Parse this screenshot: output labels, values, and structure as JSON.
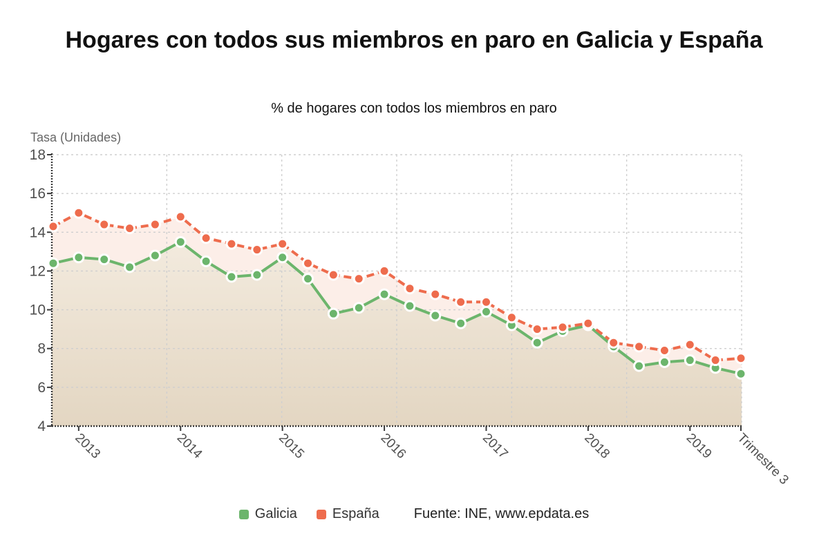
{
  "title": "Hogares con todos sus miembros en paro en Galicia y España",
  "subtitle": "% de hogares con todos los miembros en paro",
  "axis_unit_label": "Tasa (Unidades)",
  "source": "Fuente: INE, www.epdata.es",
  "legend": [
    {
      "label": "Galicia",
      "color": "#6cb56c"
    },
    {
      "label": "España",
      "color": "#ee6c4d"
    }
  ],
  "chart_data": {
    "type": "line",
    "title": "Hogares con todos sus miembros en paro en Galicia y España",
    "subtitle": "% de hogares con todos los miembros en paro",
    "ylabel": "Tasa (Unidades)",
    "ylim": [
      4,
      18
    ],
    "ytick_step": 2,
    "grid": true,
    "legend_position": "bottom",
    "x_tick_labels": [
      {
        "index": 1,
        "label": "2013"
      },
      {
        "index": 5,
        "label": "2014"
      },
      {
        "index": 9,
        "label": "2015"
      },
      {
        "index": 13,
        "label": "2016"
      },
      {
        "index": 17,
        "label": "2017"
      },
      {
        "index": 21,
        "label": "2018"
      },
      {
        "index": 25,
        "label": "2019"
      },
      {
        "index": 27,
        "label": "Trimestre 3"
      }
    ],
    "series": [
      {
        "name": "Galicia",
        "color": "#6cb56c",
        "line_style": "solid",
        "area_fill": "beige-gradient",
        "values": [
          12.4,
          12.7,
          12.6,
          12.2,
          12.8,
          13.5,
          12.5,
          11.7,
          11.8,
          12.7,
          11.6,
          9.8,
          10.1,
          10.8,
          10.2,
          9.7,
          9.3,
          9.9,
          9.2,
          8.3,
          8.9,
          9.2,
          8.1,
          7.1,
          7.3,
          7.4,
          7.0,
          6.7
        ]
      },
      {
        "name": "España",
        "color": "#ee6c4d",
        "line_style": "dashed",
        "area_fill": "light-pink",
        "values": [
          14.3,
          15.0,
          14.4,
          14.2,
          14.4,
          14.8,
          13.7,
          13.4,
          13.1,
          13.4,
          12.4,
          11.8,
          11.6,
          12.0,
          11.1,
          10.8,
          10.4,
          10.4,
          9.6,
          9.0,
          9.1,
          9.3,
          8.3,
          8.1,
          7.9,
          8.2,
          7.4,
          7.5
        ]
      }
    ],
    "style": {
      "grid_color": "#cfcfcf",
      "axis_color": "#3a3a3a",
      "label_color": "#4f4f4f",
      "pink_area": "#fceee8",
      "beige_top": "#faf4eb",
      "beige_bottom": "#e3d6c2"
    }
  }
}
